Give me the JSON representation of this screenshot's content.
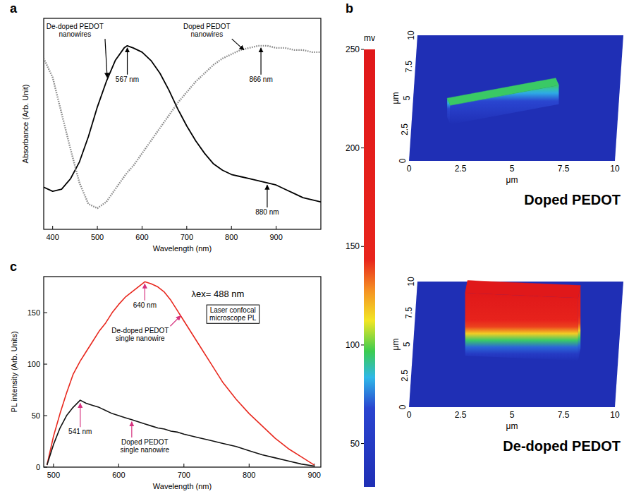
{
  "chart_data": [
    {
      "type": "line",
      "panel_label": "a",
      "xlabel": "Wavelength (nm)",
      "ylabel": "Absorbance (Arb. Unit)",
      "x": [
        380,
        400,
        420,
        440,
        460,
        480,
        500,
        520,
        540,
        560,
        567,
        580,
        600,
        620,
        640,
        660,
        680,
        700,
        720,
        740,
        760,
        780,
        800,
        820,
        840,
        860,
        880,
        900,
        920,
        940,
        960,
        980,
        1000
      ],
      "xlim": [
        380,
        1000
      ],
      "xticks": [
        400,
        500,
        600,
        700,
        800,
        900
      ],
      "ylim": [
        0,
        1
      ],
      "tick_labels": "x",
      "series": [
        {
          "color": "#000000",
          "line_style": "solid",
          "values": [
            0.2,
            0.18,
            0.19,
            0.24,
            0.32,
            0.44,
            0.58,
            0.7,
            0.8,
            0.86,
            0.87,
            0.86,
            0.84,
            0.8,
            0.74,
            0.66,
            0.57,
            0.49,
            0.42,
            0.36,
            0.31,
            0.28,
            0.26,
            0.25,
            0.24,
            0.23,
            0.22,
            0.21,
            0.19,
            0.17,
            0.15,
            0.14,
            0.13
          ]
        },
        {
          "color": "#8a8a8a",
          "line_style": "dotted",
          "values": [
            0.81,
            0.72,
            0.55,
            0.38,
            0.22,
            0.12,
            0.1,
            0.13,
            0.19,
            0.25,
            0.27,
            0.3,
            0.36,
            0.42,
            0.48,
            0.54,
            0.6,
            0.65,
            0.7,
            0.74,
            0.78,
            0.81,
            0.83,
            0.85,
            0.86,
            0.87,
            0.87,
            0.86,
            0.86,
            0.85,
            0.85,
            0.84,
            0.84
          ]
        }
      ],
      "annotations": [
        {
          "text": "De-doped PEDOT nanowires",
          "x": 450,
          "y": 0.95,
          "arrow": [
            522,
            0.72
          ]
        },
        {
          "text": "Doped PEDOT nanowires",
          "x": 745,
          "y": 0.95,
          "arrow": [
            828,
            0.85
          ]
        },
        {
          "text": "567 nm",
          "x": 567,
          "y": 0.7,
          "arrow": [
            567,
            0.86
          ]
        },
        {
          "text": "866 nm",
          "x": 866,
          "y": 0.7,
          "arrow": [
            866,
            0.86
          ]
        },
        {
          "text": "880 nm",
          "x": 880,
          "y": 0.07,
          "arrow": [
            880,
            0.21
          ]
        }
      ]
    },
    {
      "type": "surface",
      "panel_label": "b",
      "xlabel": "μm",
      "ylabel": "μm",
      "xlim": [
        0,
        10
      ],
      "xticks": [
        0,
        2.5,
        5,
        7.5,
        10
      ],
      "ylim": [
        0,
        10
      ],
      "yticks": [
        0,
        2.5,
        5,
        7.5,
        10
      ],
      "colorbar": {
        "label": "mv",
        "range": [
          28,
          250
        ],
        "ticks": [
          50,
          100,
          150,
          200,
          250
        ]
      },
      "plots": [
        {
          "title": "Doped PEDOT",
          "wire": {
            "start": [
              1.8,
              3.2
            ],
            "end": [
              7.0,
              4.8
            ],
            "width": 0.6,
            "height": 95
          }
        },
        {
          "title": "De-doped PEDOT",
          "wire": {
            "start": [
              2.6,
              4.6
            ],
            "end": [
              8.1,
              4.2
            ],
            "width": 1.0,
            "height": 250
          }
        }
      ]
    },
    {
      "type": "line",
      "panel_label": "c",
      "xlabel": "Wavelength (nm)",
      "ylabel": "PL intensity (Arb. Units)",
      "x": [
        490,
        500,
        510,
        520,
        530,
        541,
        550,
        560,
        570,
        580,
        590,
        600,
        610,
        620,
        630,
        640,
        650,
        660,
        670,
        680,
        690,
        700,
        720,
        740,
        760,
        780,
        800,
        820,
        840,
        860,
        880,
        900
      ],
      "xlim": [
        485,
        910
      ],
      "xticks": [
        500,
        600,
        700,
        800,
        900
      ],
      "ylim": [
        0,
        185
      ],
      "yticks": [
        0,
        50,
        100,
        150
      ],
      "series": [
        {
          "color": "#e8281e",
          "line_style": "solid",
          "values": [
            2,
            30,
            52,
            72,
            90,
            103,
            112,
            122,
            132,
            140,
            150,
            158,
            165,
            170,
            175,
            180,
            178,
            175,
            170,
            162,
            152,
            142,
            122,
            102,
            82,
            66,
            52,
            40,
            28,
            18,
            10,
            2
          ]
        },
        {
          "color": "#111111",
          "line_style": "solid",
          "values": [
            2,
            22,
            38,
            50,
            58,
            65,
            62,
            60,
            58,
            55,
            52,
            50,
            48,
            46,
            44,
            42,
            40,
            38,
            37,
            35,
            34,
            32,
            29,
            26,
            23,
            20,
            16,
            12,
            9,
            6,
            3,
            1
          ]
        }
      ],
      "annotations": [
        {
          "text": "640 nm",
          "x": 640,
          "y": 155,
          "arrow": [
            640,
            178
          ]
        },
        {
          "text": "541 nm",
          "x": 541,
          "y": 32,
          "arrow": [
            541,
            62
          ]
        },
        {
          "text": "λex= 488 nm",
          "x": 752,
          "y": 165
        },
        {
          "text": "Laser confocal microscope PL",
          "x": 775,
          "y": 150
        },
        {
          "text": "De-doped PEDOT single nanowire",
          "x": 633,
          "y": 130,
          "arrow": [
            695,
            147
          ]
        },
        {
          "text": "Doped PEDOT single nanowire",
          "x": 640,
          "y": 22,
          "arrow": [
            620,
            44
          ]
        }
      ]
    }
  ]
}
